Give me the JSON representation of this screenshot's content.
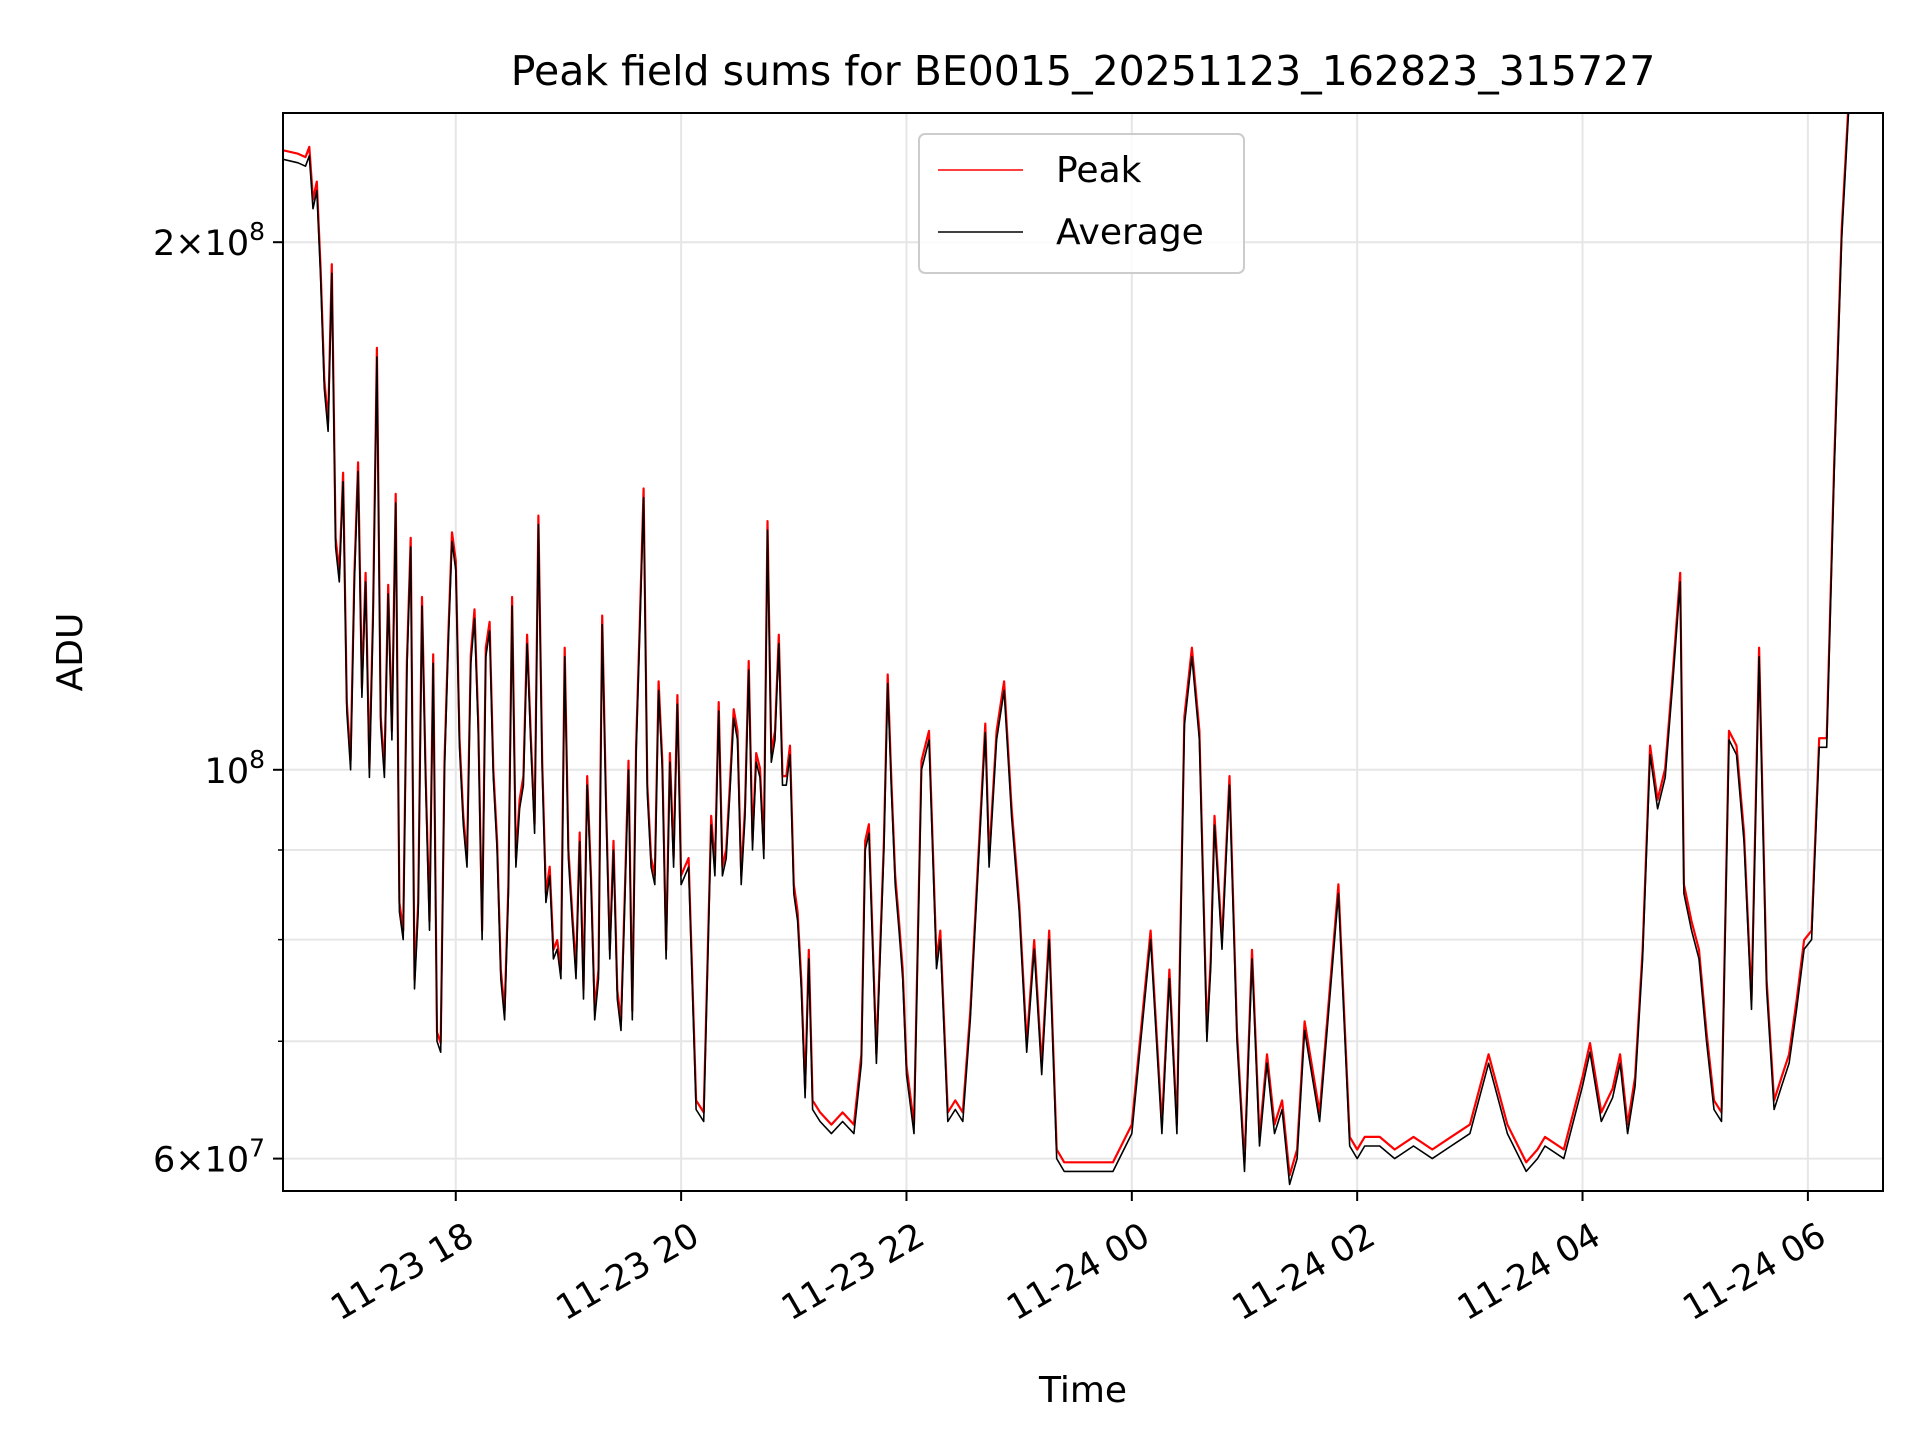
{
  "chart_data": {
    "type": "line",
    "title": "Peak field sums for BE0015_20251123_162823_315727",
    "xlabel": "Time",
    "ylabel": "ADU",
    "y_scale": "log",
    "grid": true,
    "legend_position": "top-center",
    "xlim": [
      "2025-11-23 16:28",
      "2025-11-24 06:40"
    ],
    "ylim": [
      57500000,
      237000000
    ],
    "x_ticks": [
      {
        "value": "2025-11-23 18:00",
        "label": "11-23 18"
      },
      {
        "value": "2025-11-23 20:00",
        "label": "11-23 20"
      },
      {
        "value": "2025-11-23 22:00",
        "label": "11-23 22"
      },
      {
        "value": "2025-11-24 00:00",
        "label": "11-24 00"
      },
      {
        "value": "2025-11-24 02:00",
        "label": "11-24 02"
      },
      {
        "value": "2025-11-24 04:00",
        "label": "11-24 04"
      },
      {
        "value": "2025-11-24 06:00",
        "label": "11-24 06"
      }
    ],
    "y_ticks": [
      {
        "value": 60000000,
        "base": "6",
        "exp": "7"
      },
      {
        "value": 100000000,
        "base": "",
        "exp": "8"
      },
      {
        "value": 200000000,
        "base": "2",
        "exp": "8"
      }
    ],
    "y_minor_ticks": [
      70000000,
      80000000,
      90000000
    ],
    "series": [
      {
        "name": "Peak",
        "color": "#ff0000"
      },
      {
        "name": "Average",
        "color": "#000000"
      }
    ],
    "x": [
      "2025-11-23 16:28",
      "2025-11-23 16:36",
      "2025-11-23 16:40",
      "2025-11-23 16:42",
      "2025-11-23 16:44",
      "2025-11-23 16:46",
      "2025-11-23 16:48",
      "2025-11-23 16:50",
      "2025-11-23 16:52",
      "2025-11-23 16:54",
      "2025-11-23 16:56",
      "2025-11-23 16:58",
      "2025-11-23 17:00",
      "2025-11-23 17:02",
      "2025-11-23 17:04",
      "2025-11-23 17:06",
      "2025-11-23 17:08",
      "2025-11-23 17:10",
      "2025-11-23 17:12",
      "2025-11-23 17:14",
      "2025-11-23 17:16",
      "2025-11-23 17:18",
      "2025-11-23 17:20",
      "2025-11-23 17:22",
      "2025-11-23 17:24",
      "2025-11-23 17:26",
      "2025-11-23 17:28",
      "2025-11-23 17:30",
      "2025-11-23 17:32",
      "2025-11-23 17:34",
      "2025-11-23 17:36",
      "2025-11-23 17:38",
      "2025-11-23 17:40",
      "2025-11-23 17:42",
      "2025-11-23 17:44",
      "2025-11-23 17:46",
      "2025-11-23 17:48",
      "2025-11-23 17:50",
      "2025-11-23 17:52",
      "2025-11-23 17:54",
      "2025-11-23 17:56",
      "2025-11-23 17:58",
      "2025-11-23 18:00",
      "2025-11-23 18:02",
      "2025-11-23 18:04",
      "2025-11-23 18:06",
      "2025-11-23 18:08",
      "2025-11-23 18:10",
      "2025-11-23 18:12",
      "2025-11-23 18:14",
      "2025-11-23 18:16",
      "2025-11-23 18:18",
      "2025-11-23 18:20",
      "2025-11-23 18:22",
      "2025-11-23 18:24",
      "2025-11-23 18:26",
      "2025-11-23 18:28",
      "2025-11-23 18:30",
      "2025-11-23 18:32",
      "2025-11-23 18:34",
      "2025-11-23 18:36",
      "2025-11-23 18:38",
      "2025-11-23 18:40",
      "2025-11-23 18:42",
      "2025-11-23 18:44",
      "2025-11-23 18:46",
      "2025-11-23 18:48",
      "2025-11-23 18:50",
      "2025-11-23 18:52",
      "2025-11-23 18:54",
      "2025-11-23 18:56",
      "2025-11-23 18:58",
      "2025-11-23 19:00",
      "2025-11-23 19:02",
      "2025-11-23 19:04",
      "2025-11-23 19:06",
      "2025-11-23 19:08",
      "2025-11-23 19:10",
      "2025-11-23 19:12",
      "2025-11-23 19:14",
      "2025-11-23 19:16",
      "2025-11-23 19:18",
      "2025-11-23 19:20",
      "2025-11-23 19:22",
      "2025-11-23 19:24",
      "2025-11-23 19:26",
      "2025-11-23 19:28",
      "2025-11-23 19:30",
      "2025-11-23 19:32",
      "2025-11-23 19:34",
      "2025-11-23 19:36",
      "2025-11-23 19:38",
      "2025-11-23 19:40",
      "2025-11-23 19:42",
      "2025-11-23 19:44",
      "2025-11-23 19:46",
      "2025-11-23 19:48",
      "2025-11-23 19:50",
      "2025-11-23 19:52",
      "2025-11-23 19:54",
      "2025-11-23 19:56",
      "2025-11-23 19:58",
      "2025-11-23 20:00",
      "2025-11-23 20:04",
      "2025-11-23 20:08",
      "2025-11-23 20:12",
      "2025-11-23 20:16",
      "2025-11-23 20:18",
      "2025-11-23 20:20",
      "2025-11-23 20:22",
      "2025-11-23 20:24",
      "2025-11-23 20:26",
      "2025-11-23 20:28",
      "2025-11-23 20:30",
      "2025-11-23 20:32",
      "2025-11-23 20:34",
      "2025-11-23 20:36",
      "2025-11-23 20:38",
      "2025-11-23 20:40",
      "2025-11-23 20:42",
      "2025-11-23 20:44",
      "2025-11-23 20:46",
      "2025-11-23 20:48",
      "2025-11-23 20:50",
      "2025-11-23 20:52",
      "2025-11-23 20:54",
      "2025-11-23 20:56",
      "2025-11-23 20:58",
      "2025-11-23 21:00",
      "2025-11-23 21:02",
      "2025-11-23 21:04",
      "2025-11-23 21:06",
      "2025-11-23 21:08",
      "2025-11-23 21:10",
      "2025-11-23 21:14",
      "2025-11-23 21:20",
      "2025-11-23 21:26",
      "2025-11-23 21:32",
      "2025-11-23 21:36",
      "2025-11-23 21:38",
      "2025-11-23 21:40",
      "2025-11-23 21:44",
      "2025-11-23 21:48",
      "2025-11-23 21:50",
      "2025-11-23 21:52",
      "2025-11-23 21:54",
      "2025-11-23 21:56",
      "2025-11-23 21:58",
      "2025-11-23 22:00",
      "2025-11-23 22:04",
      "2025-11-23 22:08",
      "2025-11-23 22:12",
      "2025-11-23 22:16",
      "2025-11-23 22:18",
      "2025-11-23 22:22",
      "2025-11-23 22:26",
      "2025-11-23 22:30",
      "2025-11-23 22:34",
      "2025-11-23 22:38",
      "2025-11-23 22:42",
      "2025-11-23 22:44",
      "2025-11-23 22:48",
      "2025-11-23 22:52",
      "2025-11-23 22:56",
      "2025-11-23 23:00",
      "2025-11-23 23:04",
      "2025-11-23 23:08",
      "2025-11-23 23:12",
      "2025-11-23 23:16",
      "2025-11-23 23:20",
      "2025-11-23 23:24",
      "2025-11-23 23:28",
      "2025-11-23 23:32",
      "2025-11-23 23:40",
      "2025-11-23 23:50",
      "2025-11-24 00:00",
      "2025-11-24 00:10",
      "2025-11-24 00:16",
      "2025-11-24 00:20",
      "2025-11-24 00:24",
      "2025-11-24 00:28",
      "2025-11-24 00:32",
      "2025-11-24 00:36",
      "2025-11-24 00:40",
      "2025-11-24 00:42",
      "2025-11-24 00:44",
      "2025-11-24 00:48",
      "2025-11-24 00:52",
      "2025-11-24 00:56",
      "2025-11-24 01:00",
      "2025-11-24 01:04",
      "2025-11-24 01:08",
      "2025-11-24 01:12",
      "2025-11-24 01:16",
      "2025-11-24 01:20",
      "2025-11-24 01:24",
      "2025-11-24 01:28",
      "2025-11-24 01:32",
      "2025-11-24 01:40",
      "2025-11-24 01:50",
      "2025-11-24 01:56",
      "2025-11-24 02:00",
      "2025-11-24 02:04",
      "2025-11-24 02:08",
      "2025-11-24 02:12",
      "2025-11-24 02:20",
      "2025-11-24 02:30",
      "2025-11-24 02:40",
      "2025-11-24 02:50",
      "2025-11-24 03:00",
      "2025-11-24 03:10",
      "2025-11-24 03:20",
      "2025-11-24 03:30",
      "2025-11-24 03:36",
      "2025-11-24 03:40",
      "2025-11-24 03:50",
      "2025-11-24 04:00",
      "2025-11-24 04:04",
      "2025-11-24 04:10",
      "2025-11-24 04:16",
      "2025-11-24 04:20",
      "2025-11-24 04:24",
      "2025-11-24 04:28",
      "2025-11-24 04:32",
      "2025-11-24 04:36",
      "2025-11-24 04:40",
      "2025-11-24 04:44",
      "2025-11-24 04:48",
      "2025-11-24 04:52",
      "2025-11-24 04:54",
      "2025-11-24 04:58",
      "2025-11-24 05:02",
      "2025-11-24 05:06",
      "2025-11-24 05:10",
      "2025-11-24 05:14",
      "2025-11-24 05:18",
      "2025-11-24 05:22",
      "2025-11-24 05:26",
      "2025-11-24 05:30",
      "2025-11-24 05:34",
      "2025-11-24 05:38",
      "2025-11-24 05:42",
      "2025-11-24 05:46",
      "2025-11-24 05:50",
      "2025-11-24 05:54",
      "2025-11-24 05:58",
      "2025-11-24 06:02",
      "2025-11-24 06:06",
      "2025-11-24 06:10",
      "2025-11-24 06:14",
      "2025-11-24 06:18",
      "2025-11-24 06:22",
      "2025-11-24 06:26",
      "2025-11-24 06:30",
      "2025-11-24 06:34",
      "2025-11-24 06:38"
    ],
    "average": [
      223000000,
      222000000,
      221000000,
      224000000,
      209000000,
      214000000,
      191000000,
      165000000,
      156000000,
      192000000,
      134000000,
      128000000,
      146000000,
      108000000,
      100000000,
      128000000,
      148000000,
      110000000,
      128000000,
      99000000,
      122000000,
      172000000,
      106000000,
      99000000,
      126000000,
      104000000,
      142000000,
      83000000,
      80000000,
      114000000,
      134000000,
      75000000,
      83000000,
      124000000,
      98000000,
      81000000,
      115000000,
      70000000,
      69000000,
      100000000,
      118000000,
      135000000,
      130000000,
      103000000,
      93000000,
      88000000,
      115000000,
      122000000,
      105000000,
      80000000,
      116000000,
      120000000,
      99000000,
      90000000,
      76000000,
      72000000,
      85000000,
      124000000,
      88000000,
      95000000,
      98000000,
      118000000,
      103000000,
      92000000,
      138000000,
      100000000,
      84000000,
      87000000,
      78000000,
      79000000,
      76000000,
      116000000,
      89000000,
      82000000,
      76000000,
      91000000,
      74000000,
      98000000,
      86000000,
      72000000,
      76000000,
      121000000,
      95000000,
      78000000,
      90000000,
      74000000,
      71000000,
      84000000,
      100000000,
      72000000,
      102000000,
      120000000,
      143000000,
      97000000,
      88000000,
      86000000,
      111000000,
      100000000,
      78000000,
      101000000,
      88000000,
      109000000,
      86000000,
      88000000,
      64000000,
      63000000,
      93000000,
      87000000,
      108000000,
      87000000,
      89000000,
      97000000,
      107000000,
      104000000,
      86000000,
      94000000,
      114000000,
      90000000,
      101000000,
      99000000,
      89000000,
      137000000,
      101000000,
      104000000,
      118000000,
      98000000,
      98000000,
      102000000,
      85000000,
      82000000,
      75000000,
      65000000,
      78000000,
      64000000,
      63000000,
      62000000,
      63000000,
      62000000,
      68000000,
      90000000,
      92000000,
      68000000,
      90000000,
      112000000,
      97000000,
      86000000,
      81000000,
      76000000,
      67000000,
      62000000,
      100000000,
      104000000,
      77000000,
      80000000,
      63000000,
      64000000,
      63000000,
      72000000,
      87000000,
      105000000,
      88000000,
      104000000,
      111000000,
      94000000,
      83000000,
      69000000,
      79000000,
      67000000,
      80000000,
      60000000,
      59000000,
      59000000,
      59000000,
      59000000,
      59000000,
      62000000,
      80000000,
      62000000,
      76000000,
      62000000,
      106000000,
      116000000,
      104000000,
      70000000,
      77000000,
      93000000,
      79000000,
      98000000,
      70000000,
      59000000,
      78000000,
      61000000,
      68000000,
      62000000,
      64000000,
      58000000,
      60000000,
      71000000,
      63000000,
      85000000,
      61000000,
      60000000,
      61000000,
      61000000,
      61000000,
      60000000,
      61000000,
      60000000,
      61000000,
      62000000,
      68000000,
      62000000,
      59000000,
      60000000,
      61000000,
      60000000,
      66000000,
      69000000,
      63000000,
      65000000,
      68000000,
      62000000,
      66000000,
      78000000,
      102000000,
      95000000,
      99000000,
      112000000,
      128000000,
      85000000,
      81000000,
      78000000,
      70000000,
      64000000,
      63000000,
      104000000,
      102000000,
      91000000,
      73000000,
      116000000,
      75000000,
      64000000,
      66000000,
      68000000,
      73000000,
      79000000,
      80000000,
      103000000,
      103000000,
      148000000,
      201000000,
      241000000
    ]
  },
  "legend": {
    "items": [
      {
        "label": "Peak",
        "color": "#ff0000"
      },
      {
        "label": "Average",
        "color": "#000000"
      }
    ]
  }
}
